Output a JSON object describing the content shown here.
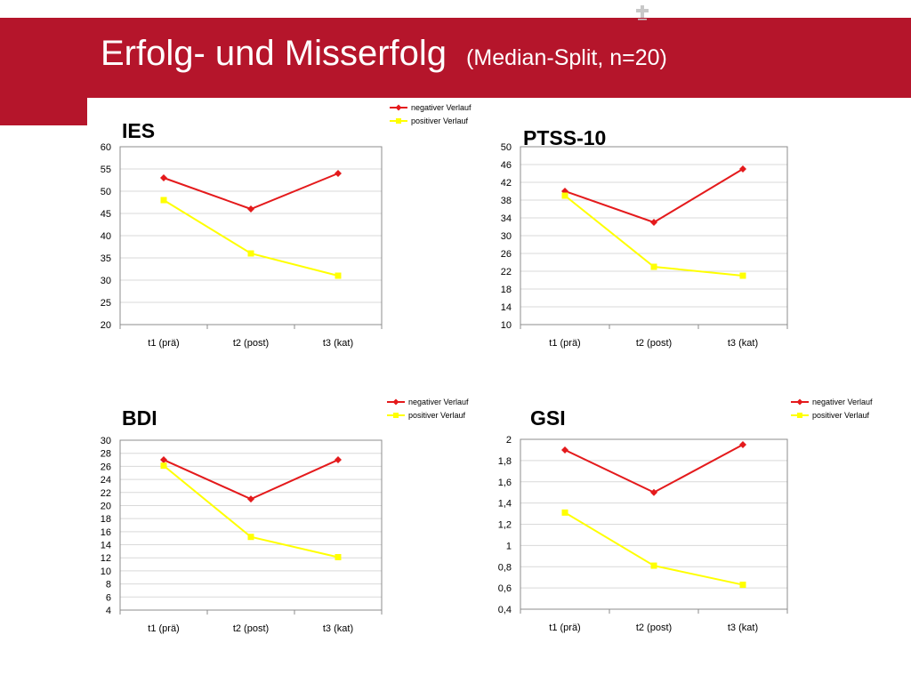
{
  "header": {
    "title": "Erfolg- und Misserfolg",
    "subtitle": "(Median-Split, n=20)",
    "accent_color": "#b5152b",
    "logo_icon": "cross-logo-icon"
  },
  "chart_data": [
    {
      "id": "ies",
      "type": "line",
      "title": "IES",
      "categories": [
        "t1 (prä)",
        "t2 (post)",
        "t3 (kat)"
      ],
      "ylim": [
        20,
        60
      ],
      "yticks": [
        "20",
        "25",
        "30",
        "35",
        "40",
        "45",
        "50",
        "55",
        "60"
      ],
      "grid": true,
      "legend_position": "top-right",
      "series": [
        {
          "name": "negativer Verlauf",
          "color": "#e41a1c",
          "marker": "diamond",
          "values": [
            53,
            46,
            54
          ]
        },
        {
          "name": "positiver Verlauf",
          "color": "#ffff00",
          "marker": "square",
          "values": [
            48,
            36,
            31
          ]
        }
      ]
    },
    {
      "id": "ptss",
      "type": "line",
      "title": "PTSS-10",
      "categories": [
        "t1 (prä)",
        "t2 (post)",
        "t3 (kat)"
      ],
      "ylim": [
        10,
        50
      ],
      "yticks": [
        "10",
        "14",
        "18",
        "22",
        "26",
        "30",
        "34",
        "38",
        "42",
        "46",
        "50"
      ],
      "grid": true,
      "legend_position": "none",
      "series": [
        {
          "name": "negativer Verlauf",
          "color": "#e41a1c",
          "marker": "diamond",
          "values": [
            40,
            33,
            45
          ]
        },
        {
          "name": "positiver Verlauf",
          "color": "#ffff00",
          "marker": "square",
          "values": [
            39,
            23,
            21
          ]
        }
      ]
    },
    {
      "id": "bdi",
      "type": "line",
      "title": "BDI",
      "categories": [
        "t1 (prä)",
        "t2 (post)",
        "t3 (kat)"
      ],
      "ylim": [
        4,
        30
      ],
      "yticks": [
        "4",
        "6",
        "8",
        "10",
        "12",
        "14",
        "16",
        "18",
        "20",
        "22",
        "24",
        "26",
        "28",
        "30"
      ],
      "grid": true,
      "legend_position": "top-right",
      "series": [
        {
          "name": "negativer Verlauf",
          "color": "#e41a1c",
          "marker": "diamond",
          "values": [
            27,
            21,
            27
          ]
        },
        {
          "name": "positiver Verlauf",
          "color": "#ffff00",
          "marker": "square",
          "values": [
            26.1,
            15.2,
            12.1
          ]
        }
      ]
    },
    {
      "id": "gsi",
      "type": "line",
      "title": "GSI",
      "categories": [
        "t1 (prä)",
        "t2 (post)",
        "t3 (kat)"
      ],
      "ylim": [
        0.4,
        2
      ],
      "yticks": [
        "0,4",
        "0,6",
        "0,8",
        "1",
        "1,2",
        "1,4",
        "1,6",
        "1,8",
        "2"
      ],
      "grid": true,
      "legend_position": "top-right",
      "series": [
        {
          "name": "negativer Verlauf",
          "color": "#e41a1c",
          "marker": "diamond",
          "values": [
            1.9,
            1.5,
            1.95
          ]
        },
        {
          "name": "positiver Verlauf",
          "color": "#ffff00",
          "marker": "square",
          "values": [
            1.31,
            0.81,
            0.63
          ]
        }
      ]
    }
  ]
}
